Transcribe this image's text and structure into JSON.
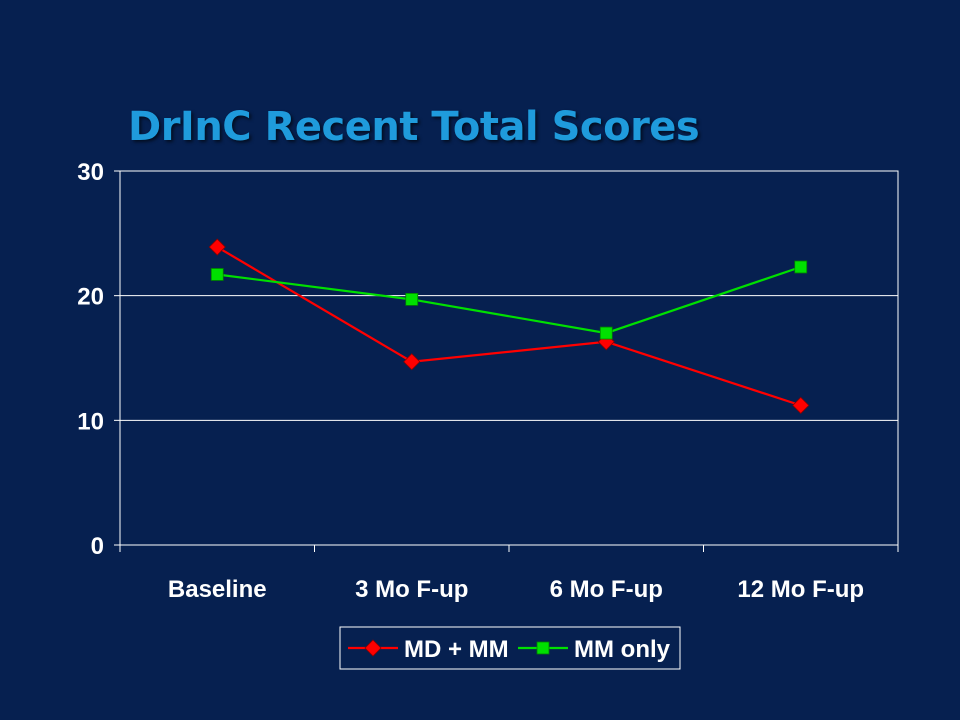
{
  "slide": {
    "title": "DrInC Recent Total Scores"
  },
  "chart_data": {
    "type": "line",
    "title": "",
    "xlabel": "",
    "ylabel": "",
    "categories": [
      "Baseline",
      "3 Mo F-up",
      "6 Mo F-up",
      "12 Mo F-up"
    ],
    "ylim": [
      0,
      30
    ],
    "yticks": [
      0,
      10,
      20,
      30
    ],
    "grid": true,
    "legend_position": "bottom",
    "series": [
      {
        "name": "MD + MM",
        "values": [
          23.9,
          14.7,
          16.3,
          11.2
        ],
        "color": "#ff0000",
        "marker": "diamond"
      },
      {
        "name": "MM only",
        "values": [
          21.7,
          19.7,
          17.0,
          22.3
        ],
        "color": "#00e000",
        "marker": "square"
      }
    ],
    "colors": {
      "background": "#062050",
      "axis": "#ffffff",
      "gridline": "#ffffff",
      "title": "#1f9bdc"
    }
  }
}
